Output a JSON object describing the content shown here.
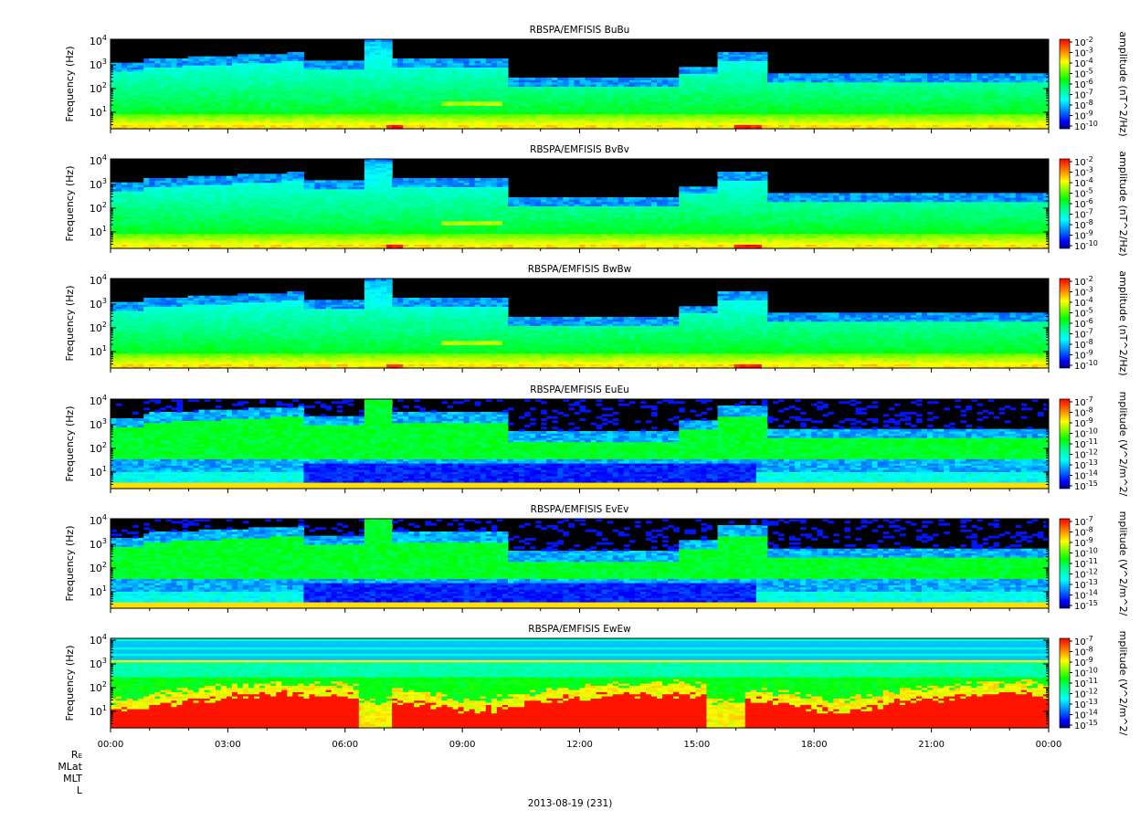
{
  "chart_data": {
    "type": "heatmap",
    "date_label": "2013-08-19 (231)",
    "x_axis": {
      "ticks": [
        "00:00",
        "03:00",
        "06:00",
        "09:00",
        "12:00",
        "15:00",
        "18:00",
        "21:00",
        "00:00"
      ],
      "range_hours": [
        0,
        24
      ],
      "minor_tick_interval_hours": 1
    },
    "y_axis": {
      "label": "Frequency (Hz)",
      "scale": "log",
      "range_hz": [
        2,
        12000
      ],
      "ticks": [
        {
          "base": "10",
          "exp": "1"
        },
        {
          "base": "10",
          "exp": "2"
        },
        {
          "base": "10",
          "exp": "3"
        },
        {
          "base": "10",
          "exp": "4"
        }
      ]
    },
    "ephemeris_labels": [
      {
        "main": "R",
        "sub": "E"
      },
      {
        "main": "MLat",
        "sub": ""
      },
      {
        "main": "MLT",
        "sub": ""
      },
      {
        "main": "L",
        "sub": ""
      }
    ],
    "colorscale": [
      "#000080",
      "#0000ff",
      "#0080ff",
      "#00ffff",
      "#00ff80",
      "#00ff00",
      "#80ff00",
      "#ffff00",
      "#ff8000",
      "#ff0000"
    ],
    "panels": [
      {
        "title": "RBSPA/EMFISIS  BuBu",
        "colorbar_label": "amplitude (nT^2/Hz)",
        "colorbar_ticks": [
          {
            "base": "10",
            "exp": "-2"
          },
          {
            "base": "10",
            "exp": "-3"
          },
          {
            "base": "10",
            "exp": "-4"
          },
          {
            "base": "10",
            "exp": "-5"
          },
          {
            "base": "10",
            "exp": "-6"
          },
          {
            "base": "10",
            "exp": "-7"
          },
          {
            "base": "10",
            "exp": "-8"
          },
          {
            "base": "10",
            "exp": "-9"
          },
          {
            "base": "10",
            "exp": "-10"
          }
        ],
        "kind": "B"
      },
      {
        "title": "RBSPA/EMFISIS  BvBv",
        "colorbar_label": "amplitude (nT^2/Hz)",
        "colorbar_ticks": [
          {
            "base": "10",
            "exp": "-2"
          },
          {
            "base": "10",
            "exp": "-3"
          },
          {
            "base": "10",
            "exp": "-4"
          },
          {
            "base": "10",
            "exp": "-5"
          },
          {
            "base": "10",
            "exp": "-6"
          },
          {
            "base": "10",
            "exp": "-7"
          },
          {
            "base": "10",
            "exp": "-8"
          },
          {
            "base": "10",
            "exp": "-9"
          },
          {
            "base": "10",
            "exp": "-10"
          }
        ],
        "kind": "B"
      },
      {
        "title": "RBSPA/EMFISIS  BwBw",
        "colorbar_label": "amplitude (nT^2/Hz)",
        "colorbar_ticks": [
          {
            "base": "10",
            "exp": "-2"
          },
          {
            "base": "10",
            "exp": "-3"
          },
          {
            "base": "10",
            "exp": "-4"
          },
          {
            "base": "10",
            "exp": "-5"
          },
          {
            "base": "10",
            "exp": "-6"
          },
          {
            "base": "10",
            "exp": "-7"
          },
          {
            "base": "10",
            "exp": "-8"
          },
          {
            "base": "10",
            "exp": "-9"
          },
          {
            "base": "10",
            "exp": "-10"
          }
        ],
        "kind": "B"
      },
      {
        "title": "RBSPA/EMFISIS  EuEu",
        "colorbar_label": "mplitude (V^2/m^2/",
        "colorbar_ticks": [
          {
            "base": "10",
            "exp": "-7"
          },
          {
            "base": "10",
            "exp": "-8"
          },
          {
            "base": "10",
            "exp": "-9"
          },
          {
            "base": "10",
            "exp": "-10"
          },
          {
            "base": "10",
            "exp": "-11"
          },
          {
            "base": "10",
            "exp": "-12"
          },
          {
            "base": "10",
            "exp": "-13"
          },
          {
            "base": "10",
            "exp": "-14"
          },
          {
            "base": "10",
            "exp": "-15"
          }
        ],
        "kind": "E"
      },
      {
        "title": "RBSPA/EMFISIS  EvEv",
        "colorbar_label": "mplitude (V^2/m^2/",
        "colorbar_ticks": [
          {
            "base": "10",
            "exp": "-7"
          },
          {
            "base": "10",
            "exp": "-8"
          },
          {
            "base": "10",
            "exp": "-9"
          },
          {
            "base": "10",
            "exp": "-10"
          },
          {
            "base": "10",
            "exp": "-11"
          },
          {
            "base": "10",
            "exp": "-12"
          },
          {
            "base": "10",
            "exp": "-13"
          },
          {
            "base": "10",
            "exp": "-14"
          },
          {
            "base": "10",
            "exp": "-15"
          }
        ],
        "kind": "E"
      },
      {
        "title": "RBSPA/EMFISIS  EwEw",
        "colorbar_label": "mplitude (V^2/m^2/",
        "colorbar_ticks": [
          {
            "base": "10",
            "exp": "-7"
          },
          {
            "base": "10",
            "exp": "-8"
          },
          {
            "base": "10",
            "exp": "-9"
          },
          {
            "base": "10",
            "exp": "-10"
          },
          {
            "base": "10",
            "exp": "-11"
          },
          {
            "base": "10",
            "exp": "-12"
          },
          {
            "base": "10",
            "exp": "-13"
          },
          {
            "base": "10",
            "exp": "-14"
          },
          {
            "base": "10",
            "exp": "-15"
          }
        ],
        "kind": "Ew"
      }
    ]
  }
}
